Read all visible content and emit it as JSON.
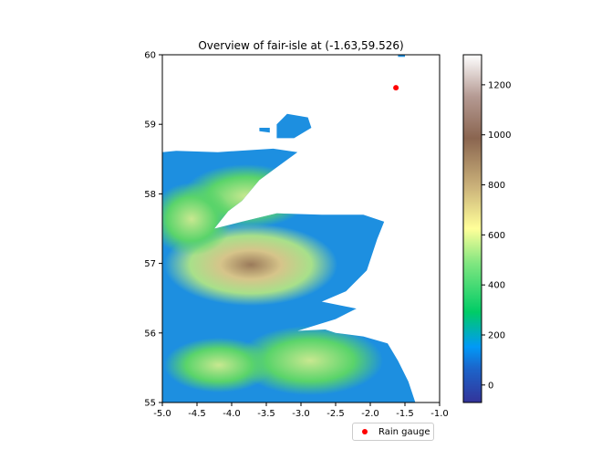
{
  "title": "Overview of fair-isle at (-1.63,59.526)",
  "colors": {
    "gauge": "#ff0000",
    "sea": "#ffffff",
    "axes": "#000000"
  },
  "legend": {
    "label": "Rain gauge"
  },
  "chart_data": {
    "type": "map",
    "title": "Overview of fair-isle at (-1.63,59.526)",
    "xlim": [
      -5.0,
      -1.0
    ],
    "ylim": [
      55,
      60
    ],
    "xticks": [
      "-5.0",
      "-4.5",
      "-4.0",
      "-3.5",
      "-3.0",
      "-2.5",
      "-2.0",
      "-1.5",
      "-1.0"
    ],
    "yticks": [
      "55",
      "56",
      "57",
      "58",
      "59",
      "60"
    ],
    "xtick_values": [
      -5.0,
      -4.5,
      -4.0,
      -3.5,
      -3.0,
      -2.5,
      -2.0,
      -1.5,
      -1.0
    ],
    "ytick_values": [
      55,
      56,
      57,
      58,
      59,
      60
    ],
    "gauge": {
      "lon": -1.63,
      "lat": 59.526,
      "label": "Rain gauge"
    },
    "colorbar": {
      "range": [
        -70,
        1320
      ],
      "ticks": [
        "0",
        "200",
        "400",
        "600",
        "800",
        "1000",
        "1200"
      ],
      "tick_values": [
        0,
        200,
        400,
        600,
        800,
        1000,
        1200
      ],
      "colormap": "terrain"
    },
    "coastline": [
      [
        -5.0,
        55.0
      ],
      [
        -1.35,
        55.0
      ],
      [
        -1.45,
        55.3
      ],
      [
        -1.6,
        55.6
      ],
      [
        -1.75,
        55.85
      ],
      [
        -2.1,
        55.95
      ],
      [
        -2.5,
        56.0
      ],
      [
        -2.65,
        56.05
      ],
      [
        -3.05,
        56.03
      ],
      [
        -2.5,
        56.2
      ],
      [
        -2.2,
        56.35
      ],
      [
        -2.7,
        56.45
      ],
      [
        -2.35,
        56.6
      ],
      [
        -2.05,
        56.9
      ],
      [
        -1.9,
        57.35
      ],
      [
        -1.8,
        57.6
      ],
      [
        -2.1,
        57.7
      ],
      [
        -2.7,
        57.7
      ],
      [
        -3.35,
        57.72
      ],
      [
        -3.85,
        57.6
      ],
      [
        -4.25,
        57.5
      ],
      [
        -4.05,
        57.75
      ],
      [
        -3.85,
        57.9
      ],
      [
        -3.6,
        58.2
      ],
      [
        -3.05,
        58.6
      ],
      [
        -3.4,
        58.65
      ],
      [
        -4.2,
        58.6
      ],
      [
        -4.8,
        58.62
      ],
      [
        -5.0,
        58.6
      ]
    ],
    "islands": [
      [
        [
          -3.35,
          58.8
        ],
        [
          -3.1,
          58.8
        ],
        [
          -2.85,
          58.95
        ],
        [
          -2.9,
          59.1
        ],
        [
          -3.2,
          59.15
        ],
        [
          -3.35,
          59.0
        ]
      ],
      [
        [
          -3.6,
          58.9
        ],
        [
          -3.45,
          58.88
        ],
        [
          -3.45,
          58.95
        ],
        [
          -3.6,
          58.95
        ]
      ],
      [
        [
          -1.6,
          59.97
        ],
        [
          -1.5,
          59.97
        ],
        [
          -1.5,
          60.0
        ],
        [
          -1.6,
          60.0
        ]
      ]
    ]
  }
}
